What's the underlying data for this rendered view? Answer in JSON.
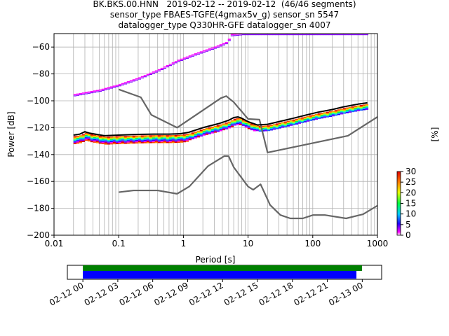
{
  "header": {
    "line1": "BK.BKS.00.HNN   2019-02-12 -- 2019-02-12  (46/46 segments)",
    "line2": "sensor_type FBAES-TGFE(4gmax5v_g) sensor_sn 5547",
    "line3": "datalogger_type Q330HR-GFE datalogger_sn 4007"
  },
  "chart_data": [
    {
      "type": "heatmap",
      "xlabel": "Period [s]",
      "ylabel": "Power [dB]",
      "xscale": "log",
      "xlim": [
        0.01,
        1000
      ],
      "ylim": [
        -200,
        -50
      ],
      "xticks": [
        0.01,
        0.1,
        1,
        10,
        100,
        1000
      ],
      "xtick_labels": [
        "0.01",
        "0.1",
        "1",
        "10",
        "100",
        "1000"
      ],
      "yticks": [
        -200,
        -180,
        -160,
        -140,
        -120,
        -100,
        -80,
        -60
      ],
      "ytick_labels": [
        "−200",
        "−180",
        "−160",
        "−140",
        "−120",
        "−100",
        "−80",
        "−60"
      ],
      "grid": true,
      "colorbar": {
        "label": "[%]",
        "range": [
          0,
          30
        ],
        "ticks": [
          0,
          5,
          10,
          15,
          20,
          25,
          30
        ],
        "tick_labels": [
          "0",
          "5",
          "10",
          "15",
          "20",
          "25",
          "30"
        ]
      },
      "series": [
        {
          "role": "noise-model-high",
          "color": "#666666",
          "x": [
            0.1,
            0.22,
            0.32,
            0.8,
            3.8,
            4.6,
            6.0,
            10,
            15,
            20,
            350,
            1000
          ],
          "y": [
            -91.5,
            -97.4,
            -110.5,
            -120.0,
            -98.0,
            -96.5,
            -101.0,
            -113.5,
            -114.0,
            -138.5,
            -126.0,
            -112.0
          ]
        },
        {
          "role": "noise-model-low",
          "color": "#666666",
          "x": [
            0.1,
            0.17,
            0.4,
            0.8,
            1.24,
            2.4,
            4.3,
            5.0,
            6.0,
            10,
            12,
            15.6,
            21.9,
            31.6,
            45,
            70,
            101,
            154,
            328,
            600,
            1000
          ],
          "y": [
            -168.0,
            -166.7,
            -166.7,
            -169.2,
            -163.7,
            -148.6,
            -141.1,
            -141.2,
            -149.4,
            -163.8,
            -166.2,
            -162.1,
            -177.5,
            -185.0,
            -187.5,
            -187.5,
            -185.0,
            -185.0,
            -187.5,
            -184.4,
            -178.0
          ]
        },
        {
          "role": "max-psd",
          "color": "#000000",
          "x": [
            0.02,
            0.025,
            0.03,
            0.035,
            0.06,
            0.1,
            0.2,
            0.35,
            0.6,
            0.9,
            1.2,
            2,
            3.5,
            5,
            6,
            7,
            8,
            10,
            14,
            20,
            30,
            50,
            80,
            120,
            200,
            300,
            500,
            700
          ],
          "y": [
            -125.5,
            -124.8,
            -123.0,
            -124.0,
            -126.0,
            -125.5,
            -125.0,
            -124.8,
            -124.8,
            -124.5,
            -123.5,
            -120.0,
            -117.0,
            -114.5,
            -112.5,
            -112.0,
            -113.0,
            -115.5,
            -118.0,
            -117.5,
            -115.5,
            -113.0,
            -110.5,
            -108.5,
            -106.5,
            -104.5,
            -102.5,
            -101.5
          ]
        }
      ],
      "timeline": {
        "xlim": [
          "2019-02-11T22:40",
          "2019-02-13T01:40"
        ],
        "ticks": [
          "2019-02-12T00:00",
          "2019-02-12T03:00",
          "2019-02-12T06:00",
          "2019-02-12T09:00",
          "2019-02-12T12:00",
          "2019-02-12T15:00",
          "2019-02-12T18:00",
          "2019-02-12T21:00",
          "2019-02-13T00:00"
        ],
        "tick_labels": [
          "02-12 00",
          "02-12 03",
          "02-12 06",
          "02-12 09",
          "02-12 12",
          "02-12 15",
          "02-12 18",
          "02-12 21",
          "02-13 00"
        ],
        "data_coverage": {
          "start": "2019-02-12T00:00",
          "end": "2019-02-12T23:30",
          "color": "#008000"
        },
        "psd_coverage": {
          "start": "2019-02-12T00:00",
          "end": "2019-02-12T23:30",
          "color": "#0000ff"
        }
      }
    }
  ]
}
